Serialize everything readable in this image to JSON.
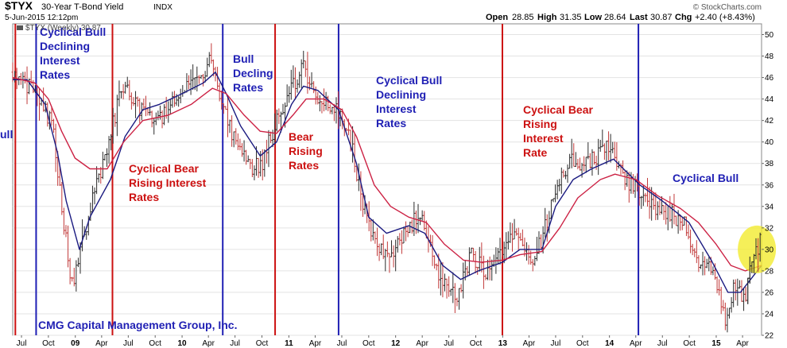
{
  "header": {
    "symbol": "$TYX",
    "name": "30-Year T-Bond Yield",
    "exchange": "INDX",
    "date": "5-Jun-2015 12:12pm",
    "open_label": "Open",
    "open": "28.85",
    "high_label": "High",
    "high": "31.35",
    "low_label": "Low",
    "low": "28.64",
    "last_label": "Last",
    "last": "30.87",
    "chg_label": "Chg",
    "chg": "+2.40 (+8.43%)",
    "watermark": "© StockCharts.com",
    "legend": "$TYX (Weekly) 30.87"
  },
  "footer": {
    "credit": "CMG Capital Management Group, Inc."
  },
  "annotations": [
    {
      "id": "ann-cyclical-bull-1",
      "color": "#1f1fb4",
      "lines": [
        "Cyclical Bull",
        "Declining",
        "Interest",
        "Rates"
      ]
    },
    {
      "id": "ann-cyclical-bear-1",
      "color": "#cc1111",
      "lines": [
        "Cyclical Bear",
        "Rising Interest",
        "Rates"
      ]
    },
    {
      "id": "ann-bull-2",
      "color": "#1f1fb4",
      "lines": [
        "Bull",
        "Decling",
        "Rates"
      ]
    },
    {
      "id": "ann-bear-2",
      "color": "#cc1111",
      "lines": [
        "Bear",
        "Rising",
        "Rates"
      ]
    },
    {
      "id": "ann-cyclical-bull-3",
      "color": "#1f1fb4",
      "lines": [
        "Cyclical Bull",
        "Declining",
        "Interest",
        "Rates"
      ]
    },
    {
      "id": "ann-cyclical-bear-3",
      "color": "#cc1111",
      "lines": [
        "Cyclical Bear",
        "Rising",
        "Interest",
        "Rate"
      ]
    },
    {
      "id": "ann-cyclical-bull-4",
      "color": "#1f1fb4",
      "lines": [
        "Cyclical Bull"
      ]
    },
    {
      "id": "ann-bull-cut",
      "color": "#1f1fb4",
      "lines": [
        "ull"
      ]
    }
  ],
  "chart_data": {
    "type": "bar",
    "title": "$TYX 30-Year T-Bond Yield",
    "frequency": "Weekly",
    "y_axis_side": "right",
    "ylim": [
      22,
      51
    ],
    "yticks": [
      22,
      24,
      26,
      28,
      30,
      32,
      34,
      36,
      38,
      40,
      42,
      44,
      46,
      48,
      50
    ],
    "x_start": "2008-06-01",
    "x_end": "2015-06-05",
    "xticks": [
      {
        "label": "Jul",
        "date": "2008-07-01",
        "bold": false
      },
      {
        "label": "Oct",
        "date": "2008-10-01",
        "bold": false
      },
      {
        "label": "09",
        "date": "2009-01-01",
        "bold": true
      },
      {
        "label": "Apr",
        "date": "2009-04-01",
        "bold": false
      },
      {
        "label": "Jul",
        "date": "2009-07-01",
        "bold": false
      },
      {
        "label": "Oct",
        "date": "2009-10-01",
        "bold": false
      },
      {
        "label": "10",
        "date": "2010-01-01",
        "bold": true
      },
      {
        "label": "Apr",
        "date": "2010-04-01",
        "bold": false
      },
      {
        "label": "Jul",
        "date": "2010-07-01",
        "bold": false
      },
      {
        "label": "Oct",
        "date": "2010-10-01",
        "bold": false
      },
      {
        "label": "11",
        "date": "2011-01-01",
        "bold": true
      },
      {
        "label": "Apr",
        "date": "2011-04-01",
        "bold": false
      },
      {
        "label": "Jul",
        "date": "2011-07-01",
        "bold": false
      },
      {
        "label": "Oct",
        "date": "2011-10-01",
        "bold": false
      },
      {
        "label": "12",
        "date": "2012-01-01",
        "bold": true
      },
      {
        "label": "Apr",
        "date": "2012-04-01",
        "bold": false
      },
      {
        "label": "Jul",
        "date": "2012-07-01",
        "bold": false
      },
      {
        "label": "Oct",
        "date": "2012-10-01",
        "bold": false
      },
      {
        "label": "13",
        "date": "2013-01-01",
        "bold": true
      },
      {
        "label": "Apr",
        "date": "2013-04-01",
        "bold": false
      },
      {
        "label": "Jul",
        "date": "2013-07-01",
        "bold": false
      },
      {
        "label": "Oct",
        "date": "2013-10-01",
        "bold": false
      },
      {
        "label": "14",
        "date": "2014-01-01",
        "bold": true
      },
      {
        "label": "Apr",
        "date": "2014-04-01",
        "bold": false
      },
      {
        "label": "Jul",
        "date": "2014-07-01",
        "bold": false
      },
      {
        "label": "Oct",
        "date": "2014-10-01",
        "bold": false
      },
      {
        "label": "15",
        "date": "2015-01-01",
        "bold": true
      },
      {
        "label": "Apr",
        "date": "2015-04-01",
        "bold": false
      }
    ],
    "vertical_markers": [
      {
        "date": "2008-06-10",
        "color": "#cc1111"
      },
      {
        "date": "2008-08-20",
        "color": "#1f1fb4"
      },
      {
        "date": "2009-05-08",
        "color": "#cc1111"
      },
      {
        "date": "2010-05-20",
        "color": "#1f1fb4"
      },
      {
        "date": "2010-11-15",
        "color": "#cc1111"
      },
      {
        "date": "2011-06-20",
        "color": "#1f1fb4"
      },
      {
        "date": "2012-12-31",
        "color": "#cc1111"
      },
      {
        "date": "2014-04-10",
        "color": "#1f1fb4"
      }
    ],
    "price_anchors": [
      [
        "2008-06-01",
        46.5
      ],
      [
        "2008-07-01",
        45.8
      ],
      [
        "2008-09-01",
        44.0
      ],
      [
        "2008-10-15",
        41.5
      ],
      [
        "2008-11-20",
        33.0
      ],
      [
        "2008-12-20",
        26.5
      ],
      [
        "2009-01-20",
        30.0
      ],
      [
        "2009-03-01",
        35.0
      ],
      [
        "2009-04-15",
        38.5
      ],
      [
        "2009-06-10",
        45.5
      ],
      [
        "2009-08-01",
        43.5
      ],
      [
        "2009-10-01",
        41.5
      ],
      [
        "2009-12-01",
        44.0
      ],
      [
        "2010-01-15",
        45.5
      ],
      [
        "2010-03-01",
        46.0
      ],
      [
        "2010-04-10",
        47.5
      ],
      [
        "2010-05-10",
        44.5
      ],
      [
        "2010-06-20",
        41.0
      ],
      [
        "2010-08-20",
        37.5
      ],
      [
        "2010-10-01",
        38.0
      ],
      [
        "2010-11-20",
        42.0
      ],
      [
        "2011-01-10",
        45.0
      ],
      [
        "2011-02-20",
        47.0
      ],
      [
        "2011-04-15",
        44.0
      ],
      [
        "2011-06-20",
        43.0
      ],
      [
        "2011-08-01",
        40.0
      ],
      [
        "2011-09-10",
        34.5
      ],
      [
        "2011-10-20",
        31.0
      ],
      [
        "2011-12-01",
        29.5
      ],
      [
        "2012-01-15",
        30.5
      ],
      [
        "2012-03-20",
        33.5
      ],
      [
        "2012-05-01",
        30.5
      ],
      [
        "2012-06-01",
        27.0
      ],
      [
        "2012-07-25",
        25.5
      ],
      [
        "2012-09-15",
        29.5
      ],
      [
        "2012-11-15",
        27.5
      ],
      [
        "2013-01-01",
        29.8
      ],
      [
        "2013-02-15",
        31.5
      ],
      [
        "2013-04-15",
        28.5
      ],
      [
        "2013-05-25",
        32.0
      ],
      [
        "2013-07-01",
        35.5
      ],
      [
        "2013-08-20",
        38.5
      ],
      [
        "2013-09-15",
        37.0
      ],
      [
        "2013-10-20",
        38.0
      ],
      [
        "2013-12-31",
        39.5
      ],
      [
        "2014-03-01",
        36.5
      ],
      [
        "2014-05-20",
        34.0
      ],
      [
        "2014-07-15",
        33.5
      ],
      [
        "2014-09-15",
        32.5
      ],
      [
        "2014-10-15",
        29.5
      ],
      [
        "2014-12-15",
        28.0
      ],
      [
        "2015-01-31",
        23.5
      ],
      [
        "2015-03-05",
        26.5
      ],
      [
        "2015-04-10",
        25.5
      ],
      [
        "2015-05-05",
        29.5
      ],
      [
        "2015-06-05",
        30.87
      ]
    ],
    "series": [
      {
        "kind": "sma_short",
        "color": "#1a1a80",
        "points": [
          [
            "2008-06-01",
            45.8
          ],
          [
            "2008-07-20",
            45.8
          ],
          [
            "2008-09-20",
            43.5
          ],
          [
            "2008-11-01",
            39.0
          ],
          [
            "2008-12-01",
            34.5
          ],
          [
            "2009-01-15",
            30.0
          ],
          [
            "2009-02-20",
            33.0
          ],
          [
            "2009-05-01",
            36.5
          ],
          [
            "2009-06-20",
            40.5
          ],
          [
            "2009-08-20",
            43.0
          ],
          [
            "2009-10-15",
            43.5
          ],
          [
            "2010-01-01",
            44.5
          ],
          [
            "2010-03-15",
            45.5
          ],
          [
            "2010-04-25",
            46.5
          ],
          [
            "2010-06-01",
            44.5
          ],
          [
            "2010-07-20",
            41.5
          ],
          [
            "2010-09-25",
            38.7
          ],
          [
            "2010-11-20",
            40.0
          ],
          [
            "2011-01-10",
            43.5
          ],
          [
            "2011-02-20",
            45.2
          ],
          [
            "2011-04-10",
            44.8
          ],
          [
            "2011-06-20",
            43.0
          ],
          [
            "2011-08-20",
            38.0
          ],
          [
            "2011-10-01",
            33.0
          ],
          [
            "2011-12-01",
            31.5
          ],
          [
            "2012-02-15",
            32.2
          ],
          [
            "2012-04-10",
            31.5
          ],
          [
            "2012-06-10",
            28.5
          ],
          [
            "2012-08-10",
            27.2
          ],
          [
            "2012-10-10",
            28.0
          ],
          [
            "2012-12-31",
            28.8
          ],
          [
            "2013-03-01",
            30.0
          ],
          [
            "2013-05-15",
            30.0
          ],
          [
            "2013-07-01",
            34.0
          ],
          [
            "2013-08-30",
            36.5
          ],
          [
            "2013-11-01",
            37.5
          ],
          [
            "2014-01-15",
            38.4
          ],
          [
            "2014-04-15",
            36.0
          ],
          [
            "2014-07-01",
            34.5
          ],
          [
            "2014-09-30",
            32.5
          ],
          [
            "2014-12-15",
            29.0
          ],
          [
            "2015-02-10",
            26.0
          ],
          [
            "2015-03-25",
            26.0
          ],
          [
            "2015-06-05",
            28.5
          ]
        ]
      },
      {
        "kind": "sma_long",
        "color": "#cc2244",
        "points": [
          [
            "2008-06-01",
            46.0
          ],
          [
            "2008-08-15",
            45.5
          ],
          [
            "2008-10-01",
            44.0
          ],
          [
            "2008-11-15",
            41.0
          ],
          [
            "2008-12-31",
            38.5
          ],
          [
            "2009-02-20",
            37.5
          ],
          [
            "2009-04-20",
            37.5
          ],
          [
            "2009-06-15",
            40.0
          ],
          [
            "2009-08-20",
            42.0
          ],
          [
            "2009-11-15",
            42.5
          ],
          [
            "2010-02-01",
            43.5
          ],
          [
            "2010-04-15",
            45.0
          ],
          [
            "2010-06-01",
            44.5
          ],
          [
            "2010-08-01",
            42.5
          ],
          [
            "2010-09-25",
            41.0
          ],
          [
            "2010-11-20",
            40.8
          ],
          [
            "2011-01-15",
            42.5
          ],
          [
            "2011-03-01",
            44.0
          ],
          [
            "2011-05-01",
            44.0
          ],
          [
            "2011-07-01",
            43.0
          ],
          [
            "2011-08-20",
            40.5
          ],
          [
            "2011-10-20",
            36.0
          ],
          [
            "2011-12-15",
            34.0
          ],
          [
            "2012-02-15",
            33.0
          ],
          [
            "2012-04-15",
            32.5
          ],
          [
            "2012-06-15",
            30.5
          ],
          [
            "2012-08-20",
            29.0
          ],
          [
            "2012-10-20",
            28.8
          ],
          [
            "2012-12-31",
            29.0
          ],
          [
            "2013-03-01",
            29.5
          ],
          [
            "2013-05-15",
            29.8
          ],
          [
            "2013-07-15",
            32.0
          ],
          [
            "2013-09-15",
            34.8
          ],
          [
            "2013-12-01",
            36.5
          ],
          [
            "2014-01-20",
            37.0
          ],
          [
            "2014-04-01",
            36.5
          ],
          [
            "2014-06-15",
            35.0
          ],
          [
            "2014-09-01",
            33.8
          ],
          [
            "2014-11-01",
            32.5
          ],
          [
            "2014-12-31",
            30.5
          ],
          [
            "2015-02-20",
            28.5
          ],
          [
            "2015-04-10",
            28.0
          ],
          [
            "2015-06-05",
            28.5
          ]
        ]
      }
    ],
    "highlight": {
      "date": "2015-05-20",
      "value": 30.0,
      "color": "#f2ea2a"
    }
  }
}
